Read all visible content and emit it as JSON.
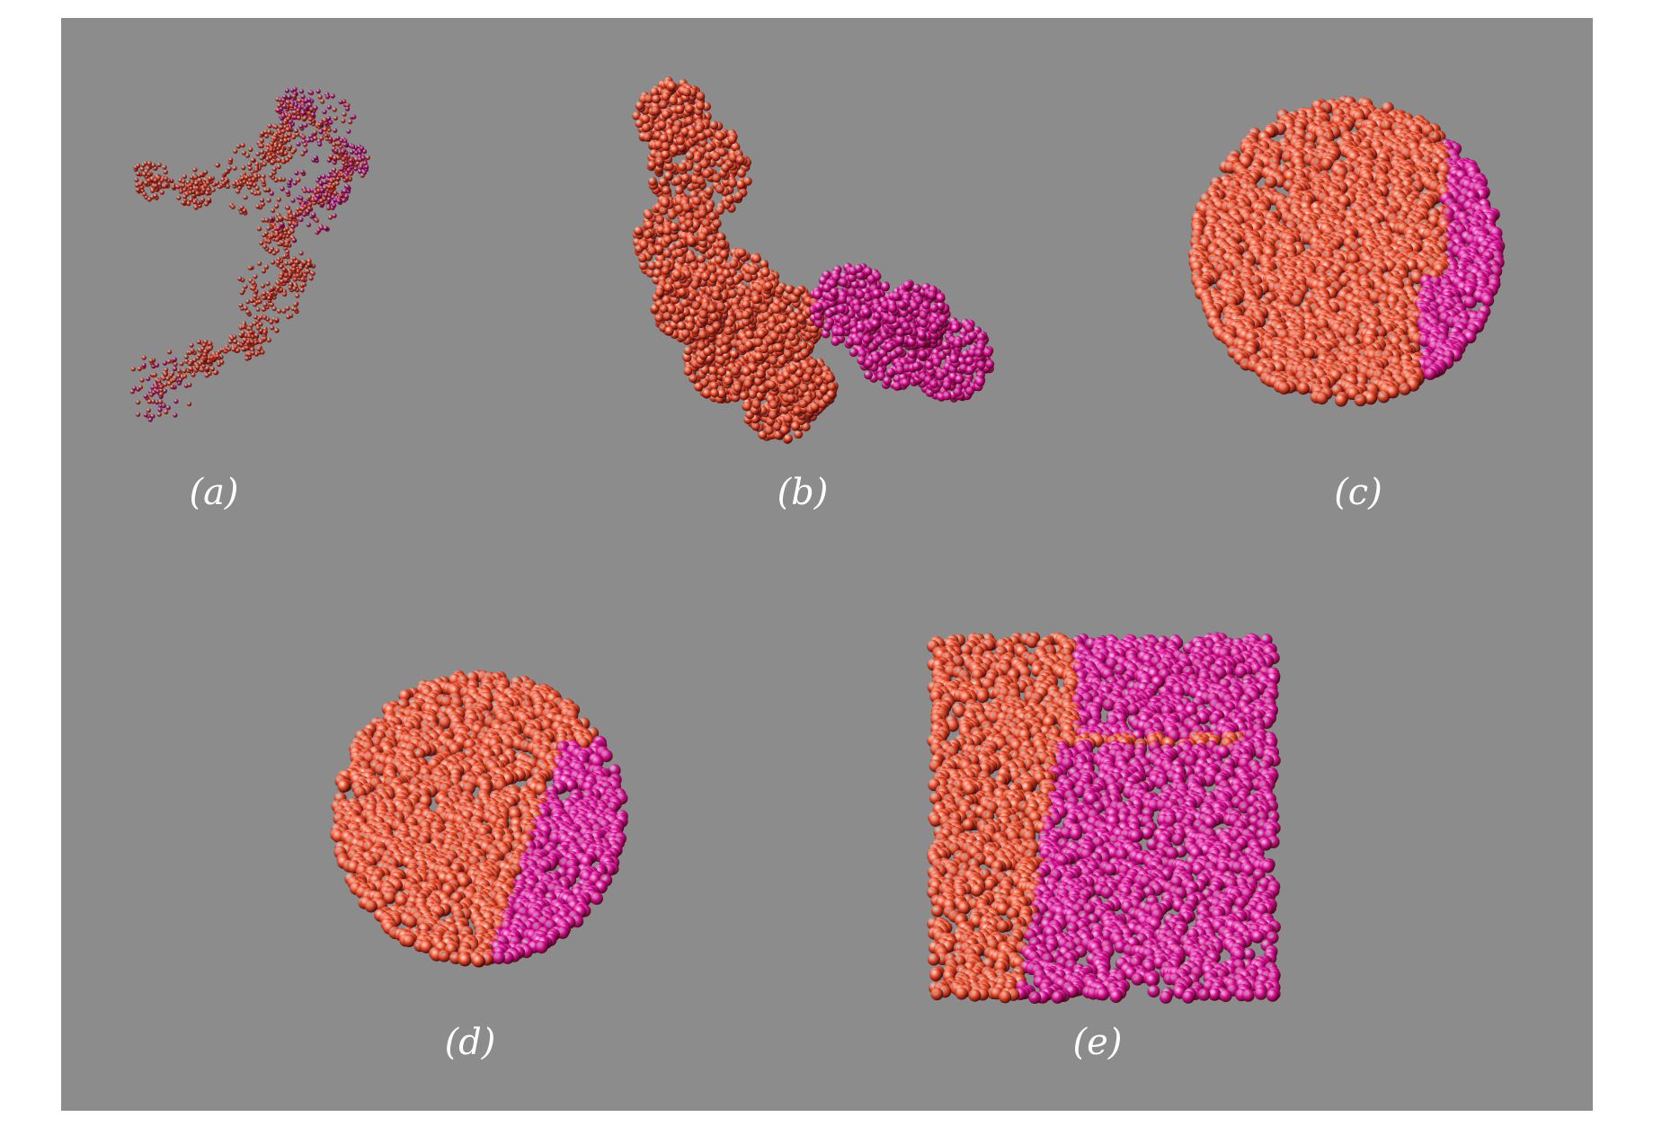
{
  "colors": {
    "background": "#8c8c8c",
    "block_a": "#f0502c",
    "block_b": "#e0109a",
    "block_a_dark": "#c8402a",
    "block_b_dark": "#a81a7a"
  },
  "panels": [
    {
      "id": "a",
      "label": "(a)",
      "shape": "extended-coil"
    },
    {
      "id": "b",
      "label": "(b)",
      "shape": "branched-aggregate"
    },
    {
      "id": "c",
      "label": "(c)",
      "shape": "sphere-patch"
    },
    {
      "id": "d",
      "label": "(d)",
      "shape": "sphere-split"
    },
    {
      "id": "e",
      "label": "(e)",
      "shape": "cylinder-split"
    }
  ]
}
